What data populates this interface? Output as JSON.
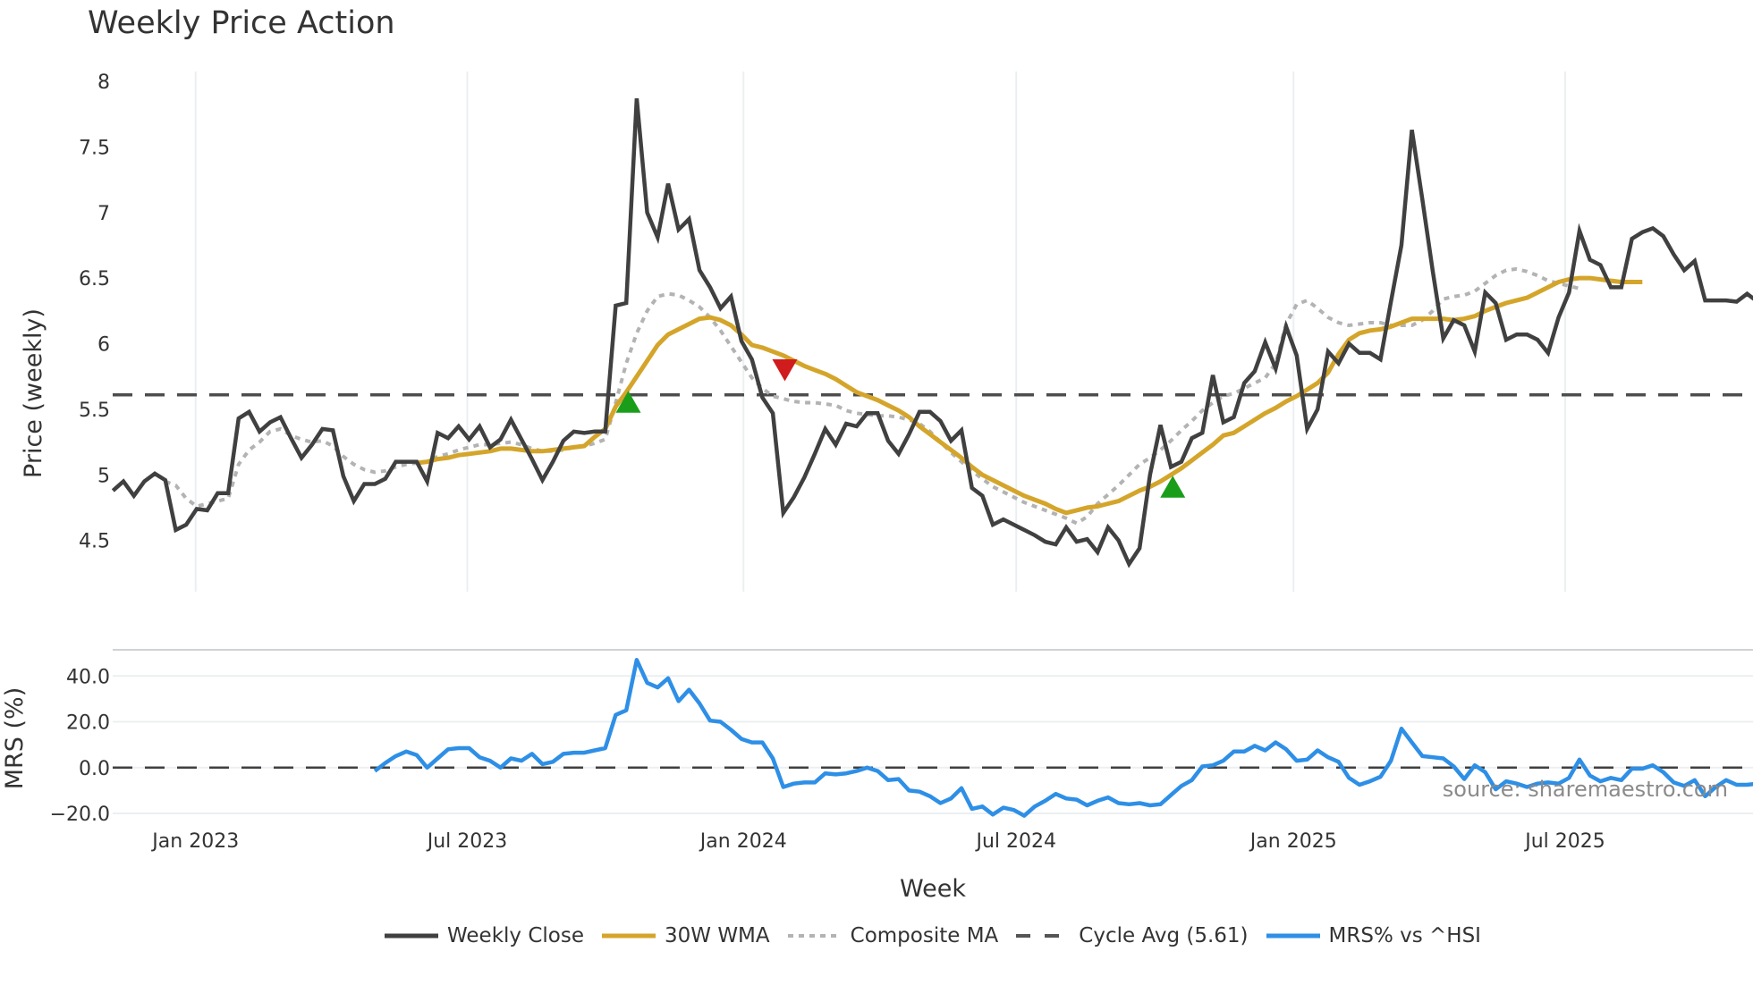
{
  "title": "Weekly Price Action",
  "price_panel": {
    "ylabel": "Price (weekly)",
    "yticks": [
      "8",
      "7.5",
      "7",
      "6.5",
      "6",
      "5.5",
      "5",
      "4.5"
    ],
    "cycle_avg": 5.61
  },
  "mrs_panel": {
    "ylabel": "MRS (%)",
    "yticks": [
      "40.0",
      "20.0",
      "0.0",
      "−20.0"
    ]
  },
  "xaxis": {
    "label": "Week",
    "ticks": [
      "Jan 2023",
      "Jul 2023",
      "Jan 2024",
      "Jul 2024",
      "Jan 2025",
      "Jul 2025"
    ]
  },
  "source": "source: sharemaestro.com",
  "legend": [
    {
      "label": "Weekly Close",
      "color": "#404040",
      "style": "solid"
    },
    {
      "label": "30W WMA",
      "color": "#d4a52a",
      "style": "solid"
    },
    {
      "label": "Composite MA",
      "color": "#b3b3b3",
      "style": "dotted"
    },
    {
      "label": "Cycle Avg (5.61)",
      "color": "#555555",
      "style": "dashed"
    },
    {
      "label": "MRS% vs ^HSI",
      "color": "#2e8fe6",
      "style": "solid"
    }
  ],
  "colors": {
    "close": "#404040",
    "wma": "#d4a52a",
    "composite": "#b3b3b3",
    "cycle": "#4d4d4d",
    "mrs": "#2e8fe6",
    "buy_marker": "#1a9e1a",
    "sell_marker": "#d01c1c",
    "grid": "#eceff1"
  },
  "chart_data": [
    {
      "type": "line",
      "title": "Weekly Price Action",
      "xlabel": "Week",
      "ylabel": "Price (weekly)",
      "ylim": [
        4.1,
        8.05
      ],
      "x_start": "2022-11-07",
      "x_step": "1 week",
      "x_ticks": [
        "Jan 2023",
        "Jul 2023",
        "Jan 2024",
        "Jul 2024",
        "Jan 2025",
        "Jul 2025"
      ],
      "grid": true,
      "legend_position": "bottom",
      "series": [
        {
          "name": "Weekly Close",
          "values": [
            4.88,
            4.95,
            4.84,
            4.95,
            5.01,
            4.96,
            4.58,
            4.62,
            4.74,
            4.73,
            4.86,
            4.86,
            5.43,
            5.48,
            5.33,
            5.4,
            5.44,
            5.28,
            5.13,
            5.23,
            5.35,
            5.34,
            4.99,
            4.8,
            4.93,
            4.93,
            4.97,
            5.1,
            5.1,
            5.1,
            4.95,
            5.32,
            5.28,
            5.37,
            5.27,
            5.37,
            5.21,
            5.27,
            5.42,
            5.27,
            5.12,
            4.96,
            5.1,
            5.26,
            5.33,
            5.32,
            5.33,
            5.33,
            6.29,
            6.31,
            7.87,
            7.0,
            6.81,
            7.22,
            6.87,
            6.95,
            6.56,
            6.43,
            6.27,
            6.36,
            6.02,
            5.88,
            5.59,
            5.47,
            4.71,
            4.83,
            4.98,
            5.16,
            5.35,
            5.23,
            5.39,
            5.37,
            5.47,
            5.47,
            5.26,
            5.16,
            5.31,
            5.48,
            5.48,
            5.41,
            5.26,
            5.34,
            4.9,
            4.84,
            4.62,
            4.66,
            4.62,
            4.58,
            4.54,
            4.49,
            4.47,
            4.6,
            4.49,
            4.51,
            4.41,
            4.6,
            4.5,
            4.32,
            4.44,
            5.0,
            5.38,
            5.06,
            5.1,
            5.28,
            5.32,
            5.76,
            5.4,
            5.44,
            5.7,
            5.79,
            6.01,
            5.81,
            6.13,
            5.91,
            5.35,
            5.5,
            5.94,
            5.85,
            6.0,
            5.93,
            5.93,
            5.88,
            6.32,
            6.75,
            7.63,
            7.1,
            6.55,
            6.04,
            6.18,
            6.14,
            5.94,
            6.39,
            6.31,
            6.03,
            6.07,
            6.07,
            6.03,
            5.93,
            6.2,
            6.39,
            6.86,
            6.64,
            6.6,
            6.43,
            6.43,
            6.8,
            6.85,
            6.88,
            6.82,
            6.68,
            6.56,
            6.63,
            6.33,
            6.33,
            6.33,
            6.32,
            6.38,
            6.32
          ]
        },
        {
          "name": "30W WMA",
          "start_index": 29,
          "values": [
            5.09,
            5.1,
            5.12,
            5.13,
            5.15,
            5.16,
            5.17,
            5.18,
            5.2,
            5.2,
            5.19,
            5.18,
            5.18,
            5.19,
            5.2,
            5.21,
            5.22,
            5.29,
            5.35,
            5.52,
            5.63,
            5.75,
            5.87,
            5.99,
            6.07,
            6.11,
            6.15,
            6.19,
            6.2,
            6.18,
            6.14,
            6.07,
            5.99,
            5.97,
            5.94,
            5.91,
            5.87,
            5.83,
            5.8,
            5.77,
            5.73,
            5.68,
            5.63,
            5.6,
            5.57,
            5.53,
            5.49,
            5.44,
            5.37,
            5.31,
            5.25,
            5.19,
            5.13,
            5.06,
            5.0,
            4.96,
            4.92,
            4.88,
            4.84,
            4.81,
            4.78,
            4.74,
            4.71,
            4.73,
            4.75,
            4.76,
            4.78,
            4.8,
            4.84,
            4.88,
            4.91,
            4.95,
            5.0,
            5.05,
            5.11,
            5.17,
            5.23,
            5.3,
            5.32,
            5.37,
            5.42,
            5.47,
            5.51,
            5.56,
            5.6,
            5.65,
            5.7,
            5.78,
            5.92,
            6.03,
            6.08,
            6.1,
            6.11,
            6.13,
            6.16,
            6.19,
            6.19,
            6.19,
            6.19,
            6.18,
            6.19,
            6.21,
            6.25,
            6.28,
            6.31,
            6.33,
            6.35,
            6.39,
            6.43,
            6.47,
            6.49,
            6.5,
            6.5,
            6.49,
            6.48,
            6.47,
            6.47,
            6.47
          ]
        },
        {
          "name": "Composite MA",
          "values": [
            null,
            null,
            null,
            null,
            null,
            4.95,
            4.92,
            4.82,
            4.76,
            4.78,
            4.8,
            4.82,
            5.08,
            5.19,
            5.25,
            5.33,
            5.35,
            5.3,
            5.27,
            5.25,
            5.26,
            5.22,
            5.14,
            5.08,
            5.04,
            5.02,
            5.03,
            5.06,
            5.08,
            5.09,
            5.1,
            5.14,
            5.16,
            5.19,
            5.21,
            5.23,
            5.23,
            5.24,
            5.25,
            5.23,
            5.2,
            5.18,
            5.18,
            5.19,
            5.21,
            5.22,
            5.24,
            5.27,
            5.55,
            5.85,
            6.08,
            6.25,
            6.36,
            6.38,
            6.37,
            6.33,
            6.28,
            6.2,
            6.1,
            5.98,
            5.86,
            5.74,
            5.66,
            5.6,
            5.58,
            5.56,
            5.55,
            5.55,
            5.54,
            5.53,
            5.49,
            5.47,
            5.46,
            5.45,
            5.45,
            5.44,
            5.42,
            5.39,
            5.33,
            5.25,
            5.17,
            5.1,
            5.03,
            4.97,
            4.91,
            4.87,
            4.83,
            4.79,
            4.76,
            4.73,
            4.7,
            4.67,
            4.63,
            4.68,
            4.78,
            4.85,
            4.92,
            5.0,
            5.08,
            5.13,
            5.19,
            5.26,
            5.34,
            5.41,
            5.49,
            5.55,
            5.6,
            5.62,
            5.66,
            5.7,
            5.74,
            5.85,
            6.15,
            6.3,
            6.33,
            6.27,
            6.2,
            6.16,
            6.14,
            6.15,
            6.16,
            6.16,
            6.14,
            6.14,
            6.14,
            6.18,
            6.25,
            6.34,
            6.36,
            6.37,
            6.4,
            6.46,
            6.52,
            6.56,
            6.57,
            6.55,
            6.52,
            6.48,
            6.46,
            6.44,
            6.42
          ]
        },
        {
          "name": "Cycle Avg (5.61)",
          "constant": 5.61,
          "style": "dashed"
        }
      ],
      "markers": [
        {
          "type": "buy",
          "shape": "triangle-up",
          "date_approx": "2023-10",
          "value": 5.55
        },
        {
          "type": "sell",
          "shape": "triangle-down",
          "date_approx": "2024-02",
          "value": 5.82
        },
        {
          "type": "buy",
          "shape": "triangle-up",
          "date_approx": "2024-11",
          "value": 4.9
        }
      ]
    },
    {
      "type": "line",
      "ylabel": "MRS (%)",
      "ylim": [
        -24,
        50
      ],
      "yticks": [
        -20,
        0,
        20,
        40
      ],
      "zero_line": "dashed",
      "series": [
        {
          "name": "MRS% vs ^HSI",
          "start_index": 25,
          "values": [
            -1.5,
            2.0,
            5.0,
            7.0,
            5.5,
            0.0,
            4.0,
            8.0,
            8.5,
            8.5,
            4.5,
            3.0,
            0.0,
            4.0,
            3.0,
            6.0,
            1.5,
            2.5,
            6.0,
            6.5,
            6.5,
            7.5,
            8.5,
            23.0,
            25.0,
            47.0,
            37.0,
            35.0,
            39.0,
            29.0,
            34.0,
            28.0,
            20.5,
            20.0,
            16.5,
            12.5,
            11.0,
            11.0,
            4.0,
            -8.5,
            -7.0,
            -6.5,
            -6.5,
            -2.5,
            -3.0,
            -2.5,
            -1.5,
            0.0,
            -1.5,
            -5.5,
            -5.0,
            -10.0,
            -10.5,
            -12.5,
            -15.5,
            -13.5,
            -9.0,
            -18.0,
            -17.0,
            -20.5,
            -17.5,
            -18.5,
            -21.0,
            -17.0,
            -14.5,
            -11.5,
            -13.5,
            -14.0,
            -16.5,
            -14.5,
            -13.0,
            -15.5,
            -16.0,
            -15.5,
            -16.5,
            -16.0,
            -12.0,
            -8.0,
            -5.5,
            0.5,
            1.0,
            3.0,
            7.0,
            7.0,
            9.5,
            7.5,
            11.0,
            8.0,
            3.0,
            3.5,
            7.5,
            4.5,
            2.5,
            -4.5,
            -7.5,
            -6.0,
            -4.0,
            3.0,
            17.0,
            11.0,
            5.0,
            4.5,
            4.0,
            0.5,
            -5.0,
            1.0,
            -2.0,
            -9.5,
            -6.0,
            -7.0,
            -8.5,
            -7.0,
            -6.5,
            -7.0,
            -4.5,
            3.5,
            -3.5,
            -6.0,
            -4.5,
            -5.5,
            -0.5,
            -0.5,
            1.0,
            -2.0,
            -6.5,
            -8.0,
            -5.5,
            -12.5,
            -8.5,
            -5.5,
            -7.5,
            -7.5,
            -7.0,
            -6.5
          ]
        }
      ]
    }
  ]
}
